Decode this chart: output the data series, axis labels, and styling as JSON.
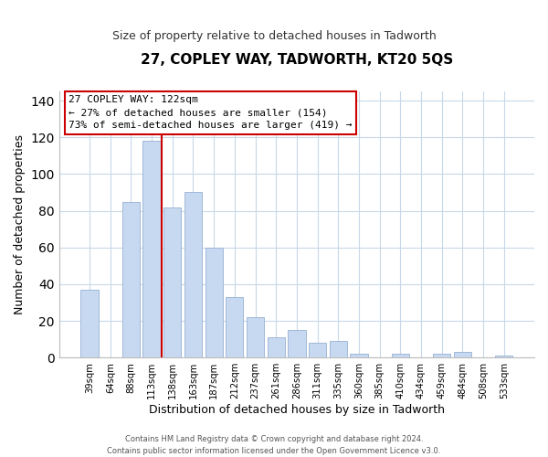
{
  "title": "27, COPLEY WAY, TADWORTH, KT20 5QS",
  "subtitle": "Size of property relative to detached houses in Tadworth",
  "xlabel": "Distribution of detached houses by size in Tadworth",
  "ylabel": "Number of detached properties",
  "bar_labels": [
    "39sqm",
    "64sqm",
    "88sqm",
    "113sqm",
    "138sqm",
    "163sqm",
    "187sqm",
    "212sqm",
    "237sqm",
    "261sqm",
    "286sqm",
    "311sqm",
    "335sqm",
    "360sqm",
    "385sqm",
    "410sqm",
    "434sqm",
    "459sqm",
    "484sqm",
    "508sqm",
    "533sqm"
  ],
  "bar_values": [
    37,
    0,
    85,
    118,
    82,
    90,
    60,
    33,
    22,
    11,
    15,
    8,
    9,
    2,
    0,
    2,
    0,
    2,
    3,
    0,
    1
  ],
  "bar_color": "#c6d9f0",
  "bar_edge_color": "#a0b8d8",
  "vline_x": 3.5,
  "vline_color": "#cc0000",
  "ylim": [
    0,
    145
  ],
  "yticks": [
    0,
    20,
    40,
    60,
    80,
    100,
    120,
    140
  ],
  "annotation_title": "27 COPLEY WAY: 122sqm",
  "annotation_line1": "← 27% of detached houses are smaller (154)",
  "annotation_line2": "73% of semi-detached houses are larger (419) →",
  "annotation_box_color": "#ffffff",
  "annotation_box_edge": "#cc0000",
  "footer1": "Contains HM Land Registry data © Crown copyright and database right 2024.",
  "footer2": "Contains public sector information licensed under the Open Government Licence v3.0.",
  "background_color": "#ffffff",
  "grid_color": "#c8d8e8"
}
